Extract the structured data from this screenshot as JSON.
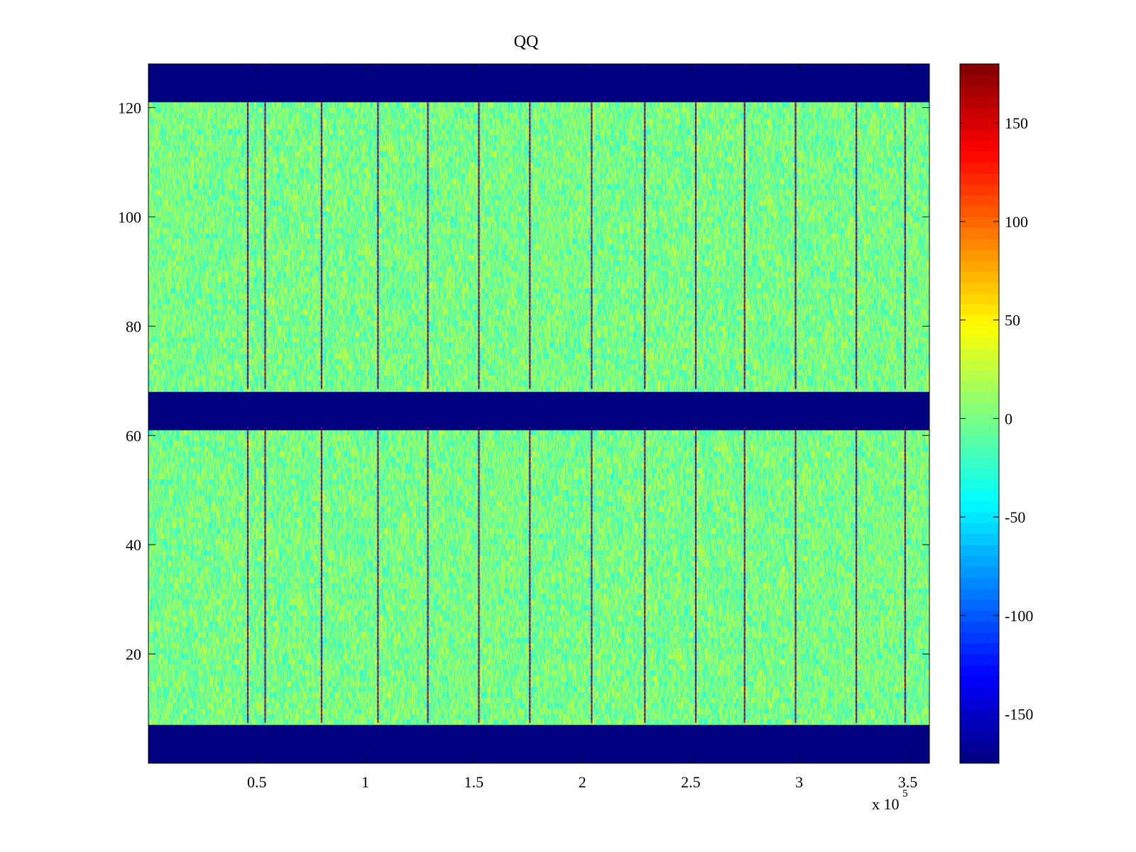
{
  "chart_data": {
    "type": "heatmap",
    "title": "QQ",
    "xlabel": "",
    "ylabel": "",
    "x_multiplier_label": "x 10",
    "x_multiplier_exponent": "5",
    "xlim": [
      0,
      3.6
    ],
    "ylim": [
      0,
      128
    ],
    "x_ticks": [
      0.5,
      1,
      1.5,
      2,
      2.5,
      3,
      3.5
    ],
    "x_tick_labels": [
      "0.5",
      "1",
      "1.5",
      "2",
      "2.5",
      "3",
      "3.5"
    ],
    "y_ticks": [
      20,
      40,
      60,
      80,
      100,
      120
    ],
    "y_tick_labels": [
      "20",
      "40",
      "60",
      "80",
      "100",
      "120"
    ],
    "colormap": "jet",
    "clim": [
      -175,
      180
    ],
    "colorbar_ticks": [
      -150,
      -100,
      -50,
      0,
      50,
      100,
      150
    ],
    "colorbar_tick_labels": [
      "-150",
      "-100",
      "-50",
      "0",
      "50",
      "100",
      "150"
    ],
    "masked_row_bands": [
      [
        0,
        7.5
      ],
      [
        61.5,
        68.5
      ],
      [
        121.5,
        128
      ]
    ],
    "masked_value": -175,
    "background_value": 0,
    "vertical_lines_x": [
      0.455,
      0.535,
      0.795,
      1.055,
      1.285,
      1.52,
      1.755,
      2.04,
      2.285,
      2.52,
      2.745,
      2.98,
      3.26,
      3.485
    ],
    "grid": false,
    "legend": "none",
    "colors": {
      "axes": "#000000",
      "background": "#ffffff"
    }
  }
}
